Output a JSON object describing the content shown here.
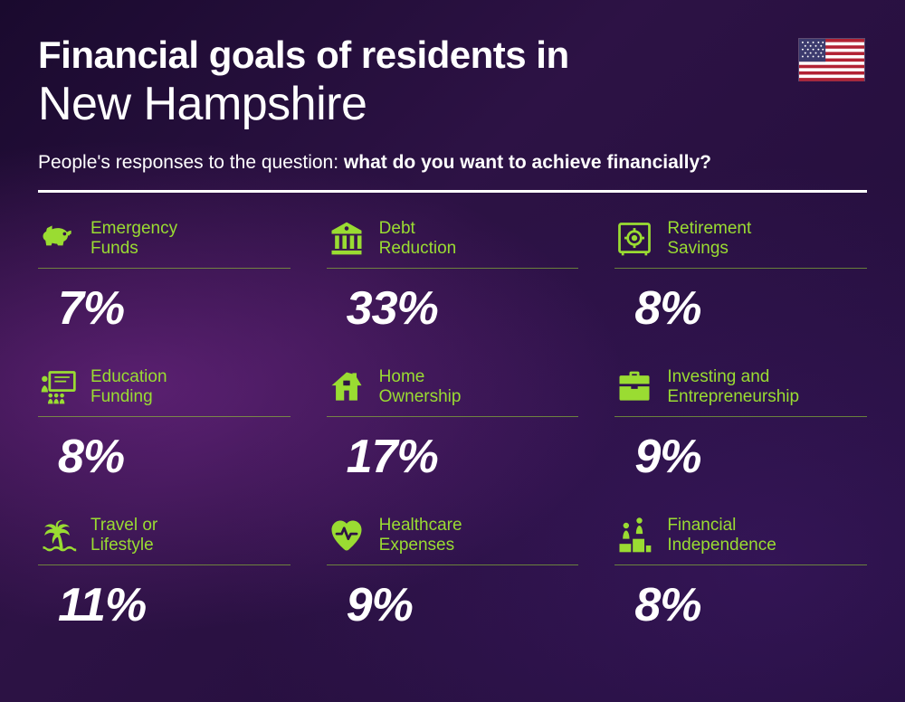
{
  "title": {
    "line1": "Financial goals of residents in",
    "line2": "New Hampshire"
  },
  "subtitle": {
    "prefix": "People's responses to the question: ",
    "bold": "what do you want to achieve financially?"
  },
  "colors": {
    "accent": "#9adc32",
    "text": "#ffffff",
    "background_start": "#1a0a2e",
    "background_end": "#1f0d38"
  },
  "typography": {
    "title_line1_size": 42,
    "title_line1_weight": 800,
    "title_line2_size": 52,
    "title_line2_weight": 300,
    "subtitle_size": 21,
    "label_size": 19,
    "value_size": 52,
    "value_weight": 800,
    "value_italic": true
  },
  "layout": {
    "columns": 3,
    "rows": 3,
    "column_gap": 40,
    "row_gap": 34
  },
  "flag": "us",
  "items": [
    {
      "icon": "piggy-bank",
      "label": "Emergency Funds",
      "value": "7%"
    },
    {
      "icon": "bank",
      "label": "Debt Reduction",
      "value": "33%"
    },
    {
      "icon": "safe",
      "label": "Retirement Savings",
      "value": "8%"
    },
    {
      "icon": "presentation",
      "label": "Education Funding",
      "value": "8%"
    },
    {
      "icon": "house",
      "label": "Home Ownership",
      "value": "17%"
    },
    {
      "icon": "briefcase",
      "label": "Investing and Entrepreneurship",
      "value": "9%"
    },
    {
      "icon": "palm",
      "label": "Travel or Lifestyle",
      "value": "11%"
    },
    {
      "icon": "heart-pulse",
      "label": "Healthcare Expenses",
      "value": "9%"
    },
    {
      "icon": "podium",
      "label": "Financial Independence",
      "value": "8%"
    }
  ]
}
